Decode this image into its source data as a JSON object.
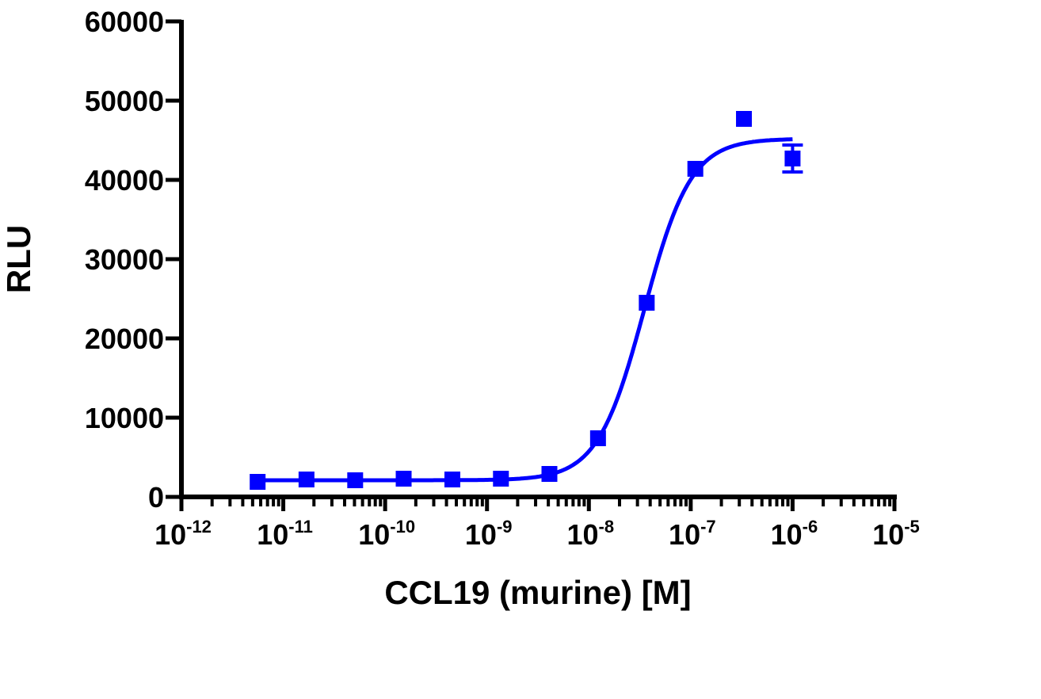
{
  "chart_data": {
    "type": "scatter",
    "title": "",
    "xlabel": "CCL19 (murine) [M]",
    "ylabel": "RLU",
    "xscale": "log",
    "xlim": [
      1e-12,
      1e-05
    ],
    "ylim": [
      0,
      60000
    ],
    "grid": false,
    "x_tick_labels": [
      {
        "base": "10",
        "exp": "-12"
      },
      {
        "base": "10",
        "exp": "-11"
      },
      {
        "base": "10",
        "exp": "-10"
      },
      {
        "base": "10",
        "exp": "-9"
      },
      {
        "base": "10",
        "exp": "-8"
      },
      {
        "base": "10",
        "exp": "-7"
      },
      {
        "base": "10",
        "exp": "-6"
      },
      {
        "base": "10",
        "exp": "-5"
      }
    ],
    "y_tick_labels": [
      "0",
      "10000",
      "20000",
      "30000",
      "40000",
      "50000",
      "60000"
    ],
    "series": [
      {
        "color": "#0000ff",
        "marker": "square",
        "x": [
          5.6e-12,
          1.69e-11,
          5.08e-11,
          1.52e-10,
          4.57e-10,
          1.37e-09,
          4.1e-09,
          1.23e-08,
          3.7e-08,
          1.11e-07,
          3.33e-07,
          1e-06
        ],
        "y": [
          1900,
          2200,
          2100,
          2300,
          2200,
          2300,
          2900,
          7400,
          24500,
          41400,
          47700,
          42700
        ],
        "error": [
          0,
          0,
          0,
          0,
          0,
          0,
          0,
          0,
          0,
          0,
          0,
          1700
        ],
        "fit": {
          "model": "sigmoidal dose-response",
          "bottom": 2100,
          "top": 45200,
          "ec50": 3.5e-08,
          "hill": 1.9
        }
      }
    ]
  }
}
